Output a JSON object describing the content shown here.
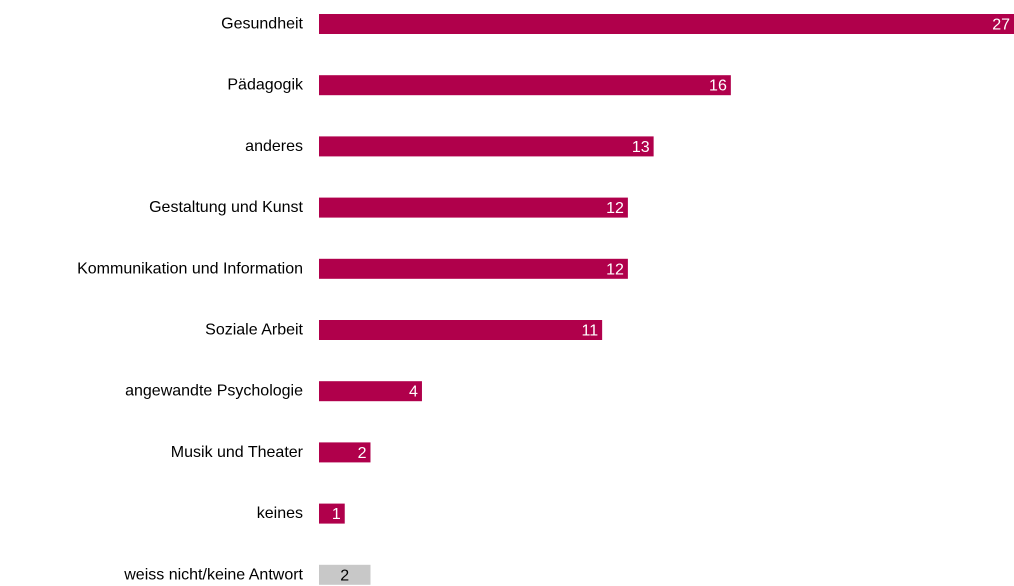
{
  "chart_data": {
    "type": "bar",
    "orientation": "horizontal",
    "categories": [
      "Gesundheit",
      "Pädagogik",
      "anderes",
      "Gestaltung und Kunst",
      "Kommunikation und Information",
      "Soziale Arbeit",
      "angewandte Psychologie",
      "Musik und Theater",
      "keines",
      "weiss nicht/keine Antwort"
    ],
    "values": [
      27,
      16,
      13,
      12,
      12,
      11,
      4,
      2,
      1,
      2
    ],
    "highlight": [
      false,
      false,
      false,
      false,
      false,
      false,
      false,
      false,
      false,
      true
    ],
    "xlim": [
      0,
      27
    ],
    "grid": false,
    "legend": "none",
    "title": "",
    "xlabel": "",
    "ylabel": ""
  },
  "colors": {
    "bar": "#b0004b",
    "bar_other": "#c8c8c8",
    "label_on_bar": "#ffffff",
    "label_on_other": "#000000"
  }
}
